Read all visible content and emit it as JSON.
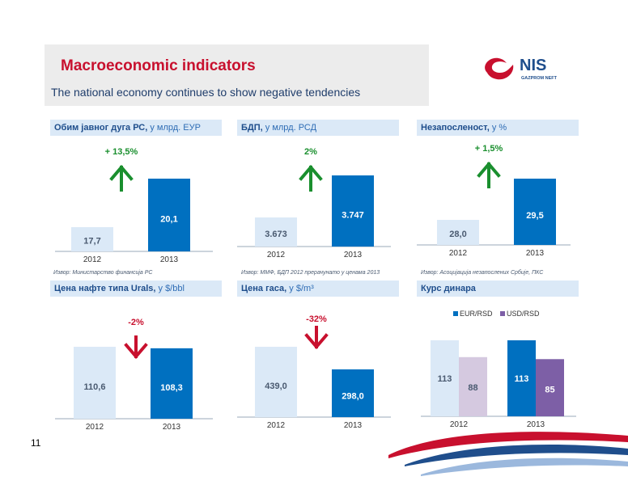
{
  "header": {
    "title": "Macroeconomic indicators",
    "subtitle": "The national economy continues to show negative tendencies"
  },
  "logo": {
    "brand": "NIS",
    "tagline": "GAZPROM NEFT",
    "icon": "nis-logo-icon"
  },
  "page_number": "11",
  "colors": {
    "accent": "#c8102e",
    "bar_prev": "#dbe9f7",
    "bar_curr": "#0070c0",
    "bar_usd": "#7d5fa6",
    "bar_usd_prev": "#d5c9e0",
    "up": "#1a8f2e",
    "down": "#c8102e"
  },
  "panels": [
    {
      "title_bold": "Обим јавног дуга РС,",
      "title_unit": " у млрд. ЕУР",
      "source": "Извор: Министарство финансија РС"
    },
    {
      "title_bold": "БДП,",
      "title_unit": " у млрд. РСД",
      "source": "Извор: ММФ, БДП 2012 прерачунато у ценама 2013"
    },
    {
      "title_bold": "Незапосленост,",
      "title_unit": " у %",
      "source": "Извор: Асоцијација незапослених Србије, ПКС"
    },
    {
      "title_bold": "Цена нафте типа Urals,",
      "title_unit": " у $/bbl",
      "source": ""
    },
    {
      "title_bold": "Цена гаса,",
      "title_unit": " у $/m³",
      "source": ""
    },
    {
      "title_bold": "Курс динара",
      "title_unit": "",
      "source": ""
    }
  ],
  "chart_data": [
    {
      "type": "bar",
      "categories": [
        "2012",
        "2013"
      ],
      "values": [
        17.7,
        20.1
      ],
      "labels": [
        "17,7",
        "20,1"
      ],
      "change": "+ 13,5%",
      "direction": "up"
    },
    {
      "type": "bar",
      "categories": [
        "2012",
        "2013"
      ],
      "values": [
        3673,
        3747
      ],
      "labels": [
        "3.673",
        "3.747"
      ],
      "change": "2%",
      "direction": "up"
    },
    {
      "type": "bar",
      "categories": [
        "2012",
        "2013"
      ],
      "values": [
        28.0,
        29.5
      ],
      "labels": [
        "28,0",
        "29,5"
      ],
      "change": "+ 1,5%",
      "direction": "up"
    },
    {
      "type": "bar",
      "categories": [
        "2012",
        "2013"
      ],
      "values": [
        110.6,
        108.3
      ],
      "labels": [
        "110,6",
        "108,3"
      ],
      "change": "-2%",
      "direction": "down"
    },
    {
      "type": "bar",
      "categories": [
        "2012",
        "2013"
      ],
      "values": [
        439.0,
        298.0
      ],
      "labels": [
        "439,0",
        "298,0"
      ],
      "change": "-32%",
      "direction": "down"
    },
    {
      "type": "bar",
      "categories": [
        "2012",
        "2013"
      ],
      "series": [
        {
          "name": "EUR/RSD",
          "values": [
            113,
            113
          ],
          "labels": [
            "113",
            "113"
          ]
        },
        {
          "name": "USD/RSD",
          "values": [
            88,
            85
          ],
          "labels": [
            "88",
            "85"
          ]
        }
      ]
    }
  ]
}
